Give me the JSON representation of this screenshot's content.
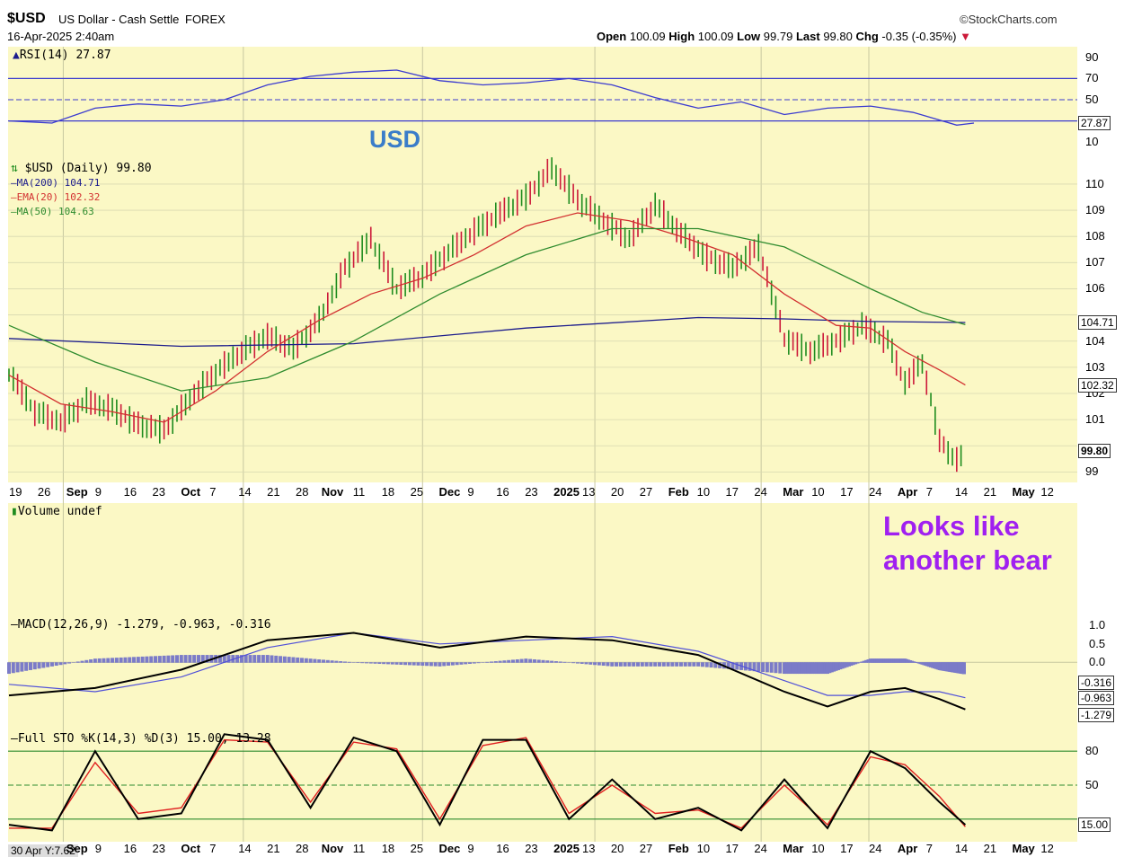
{
  "header": {
    "symbol": "$USD",
    "name": "US Dollar - Cash Settle",
    "exchange": "FOREX",
    "datetime": "16-Apr-2025 2:40am",
    "brand": "©StockCharts.com",
    "open_label": "Open",
    "open": "100.09",
    "high_label": "High",
    "high": "100.09",
    "low_label": "Low",
    "low": "99.79",
    "last_label": "Last",
    "last": "99.80",
    "chg_label": "Chg",
    "chg": "-0.35 (-0.35%)"
  },
  "annotations": {
    "usd": "USD",
    "bear_line1": "Looks like",
    "bear_line2": "another bear"
  },
  "colors": {
    "panel_bg": "#fbf8c5",
    "ma200": "#1c1c8c",
    "ema20": "#d23030",
    "ma50": "#2e8b2e",
    "up_bar": "#1e8c1e",
    "down_bar": "#cc1a3a",
    "rsi": "#3b3bd0",
    "macd_hist": "#7b7bc8",
    "annotation_blue": "#3a7dc9",
    "annotation_purple": "#a020f0"
  },
  "chart_data": [
    {
      "type": "line",
      "panel": "rsi",
      "title": "RSI(14) 27.87",
      "ylim": [
        0,
        100
      ],
      "ticks": [
        10,
        30,
        50,
        70,
        90
      ],
      "tick_labels": [
        "10",
        "",
        "50",
        "70",
        "90"
      ],
      "current": "27.87",
      "x": [
        0,
        5,
        10,
        15,
        20,
        25,
        30,
        35,
        40,
        45,
        50,
        55,
        60,
        65,
        70,
        75,
        80,
        85,
        90,
        95,
        100,
        105,
        110,
        112
      ],
      "series": [
        {
          "values": [
            30,
            28,
            42,
            46,
            44,
            50,
            64,
            72,
            76,
            78,
            68,
            64,
            66,
            70,
            64,
            52,
            42,
            48,
            36,
            42,
            44,
            38,
            26,
            28
          ]
        }
      ]
    },
    {
      "type": "line",
      "panel": "price",
      "title": "$USD (Daily) 99.80",
      "ylim": [
        98.6,
        111.2
      ],
      "ticks": [
        99,
        100,
        101,
        102,
        103,
        104,
        105,
        106,
        107,
        108,
        109,
        110
      ],
      "tick_labels": [
        "99",
        "",
        "101",
        "102",
        "103",
        "104",
        "",
        "106",
        "107",
        "108",
        "109",
        "110"
      ],
      "x_ticks": [
        "19",
        "26",
        "Sep",
        "9",
        "16",
        "23",
        "Oct",
        "7",
        "14",
        "21",
        "28",
        "Nov",
        "11",
        "18",
        "25",
        "Dec",
        "9",
        "16",
        "23",
        "2025",
        "13",
        "20",
        "27",
        "Feb",
        "10",
        "17",
        "24",
        "Mar",
        "10",
        "17",
        "24",
        "Apr",
        "7",
        "14",
        "21",
        "May",
        "12"
      ],
      "series": [
        {
          "name": "$USD (Daily) 99.80",
          "x": [
            0,
            3,
            6,
            9,
            12,
            15,
            18,
            21,
            24,
            27,
            30,
            33,
            36,
            39,
            42,
            45,
            48,
            51,
            54,
            57,
            60,
            63,
            66,
            69,
            72,
            75,
            78,
            81,
            84,
            87,
            90,
            93,
            96,
            99,
            102,
            104,
            106,
            108,
            110,
            111
          ],
          "values": [
            102.8,
            101.3,
            100.9,
            101.7,
            101.4,
            100.8,
            100.6,
            101.8,
            102.8,
            103.6,
            104.2,
            103.7,
            104.8,
            106.8,
            107.9,
            106.0,
            106.5,
            107.4,
            108.2,
            108.9,
            109.5,
            110.6,
            109.4,
            108.6,
            107.9,
            109.2,
            108.1,
            107.2,
            106.8,
            107.6,
            104.1,
            103.6,
            104.0,
            104.6,
            104.0,
            102.4,
            103.2,
            100.2,
            99.4,
            99.8
          ]
        },
        {
          "name": "MA(200) 104.71",
          "x": [
            0,
            20,
            40,
            60,
            80,
            90,
            100,
            111
          ],
          "values": [
            104.1,
            103.8,
            103.9,
            104.5,
            104.9,
            104.85,
            104.75,
            104.71
          ]
        },
        {
          "name": "EMA(20) 102.32",
          "x": [
            0,
            6,
            12,
            18,
            24,
            30,
            36,
            42,
            48,
            54,
            60,
            66,
            72,
            78,
            84,
            90,
            96,
            100,
            104,
            108,
            111
          ],
          "values": [
            102.7,
            101.6,
            101.3,
            100.9,
            102.1,
            103.6,
            104.8,
            105.8,
            106.4,
            107.3,
            108.4,
            108.9,
            108.6,
            108.0,
            107.3,
            105.8,
            104.6,
            104.5,
            103.6,
            102.9,
            102.32
          ]
        },
        {
          "name": "MA(50) 104.63",
          "x": [
            0,
            10,
            20,
            30,
            40,
            50,
            60,
            70,
            80,
            90,
            100,
            106,
            111
          ],
          "values": [
            104.6,
            103.2,
            102.1,
            102.6,
            104.0,
            105.8,
            107.3,
            108.3,
            108.3,
            107.6,
            106.0,
            105.1,
            104.63
          ]
        }
      ]
    },
    {
      "type": "bar",
      "panel": "volume",
      "title": "Volume undef"
    },
    {
      "type": "line",
      "panel": "macd",
      "title": "MACD(12,26,9) -1.279, -0.963, -0.316",
      "ylim": [
        -1.8,
        1.3
      ],
      "ticks": [
        -1.279,
        -0.963,
        -0.316,
        0,
        0.5,
        1.0
      ],
      "tick_labels": [
        "",
        "",
        "",
        "0.0",
        "0.5",
        "1.0"
      ],
      "x": [
        0,
        10,
        20,
        30,
        40,
        50,
        60,
        70,
        80,
        90,
        95,
        100,
        104,
        108,
        111
      ],
      "series": [
        {
          "name": "MACD",
          "values": [
            -0.9,
            -0.7,
            -0.2,
            0.6,
            0.8,
            0.4,
            0.7,
            0.6,
            0.2,
            -0.8,
            -1.2,
            -0.8,
            -0.7,
            -1.0,
            -1.279
          ]
        },
        {
          "name": "Signal",
          "values": [
            -0.6,
            -0.8,
            -0.4,
            0.4,
            0.8,
            0.5,
            0.6,
            0.7,
            0.3,
            -0.5,
            -0.9,
            -0.9,
            -0.8,
            -0.8,
            -0.963
          ]
        },
        {
          "name": "Histogram",
          "values": [
            -0.3,
            0.1,
            0.2,
            0.2,
            0.0,
            -0.1,
            0.1,
            -0.1,
            -0.1,
            -0.3,
            -0.3,
            0.1,
            0.1,
            -0.2,
            -0.316
          ]
        }
      ]
    },
    {
      "type": "line",
      "panel": "stochastic",
      "title": "Full STO %K(14,3) %D(3) 15.00, 13.28",
      "ylim": [
        0,
        100
      ],
      "ticks": [
        20,
        50,
        80
      ],
      "tick_labels": [
        "",
        "50",
        "80"
      ],
      "x": [
        0,
        5,
        10,
        15,
        20,
        25,
        30,
        35,
        40,
        45,
        50,
        55,
        60,
        65,
        70,
        75,
        80,
        85,
        90,
        95,
        100,
        104,
        108,
        111
      ],
      "series": [
        {
          "name": "%K",
          "values": [
            15,
            10,
            80,
            20,
            25,
            95,
            90,
            30,
            92,
            80,
            15,
            90,
            90,
            20,
            55,
            20,
            30,
            10,
            55,
            12,
            80,
            65,
            35,
            15
          ]
        },
        {
          "name": "%D",
          "values": [
            12,
            12,
            70,
            25,
            30,
            90,
            88,
            35,
            88,
            82,
            20,
            85,
            92,
            25,
            50,
            25,
            28,
            12,
            50,
            15,
            75,
            68,
            40,
            13.28
          ]
        }
      ]
    }
  ],
  "footer": {
    "readout": "30 Apr Y:7.62"
  }
}
